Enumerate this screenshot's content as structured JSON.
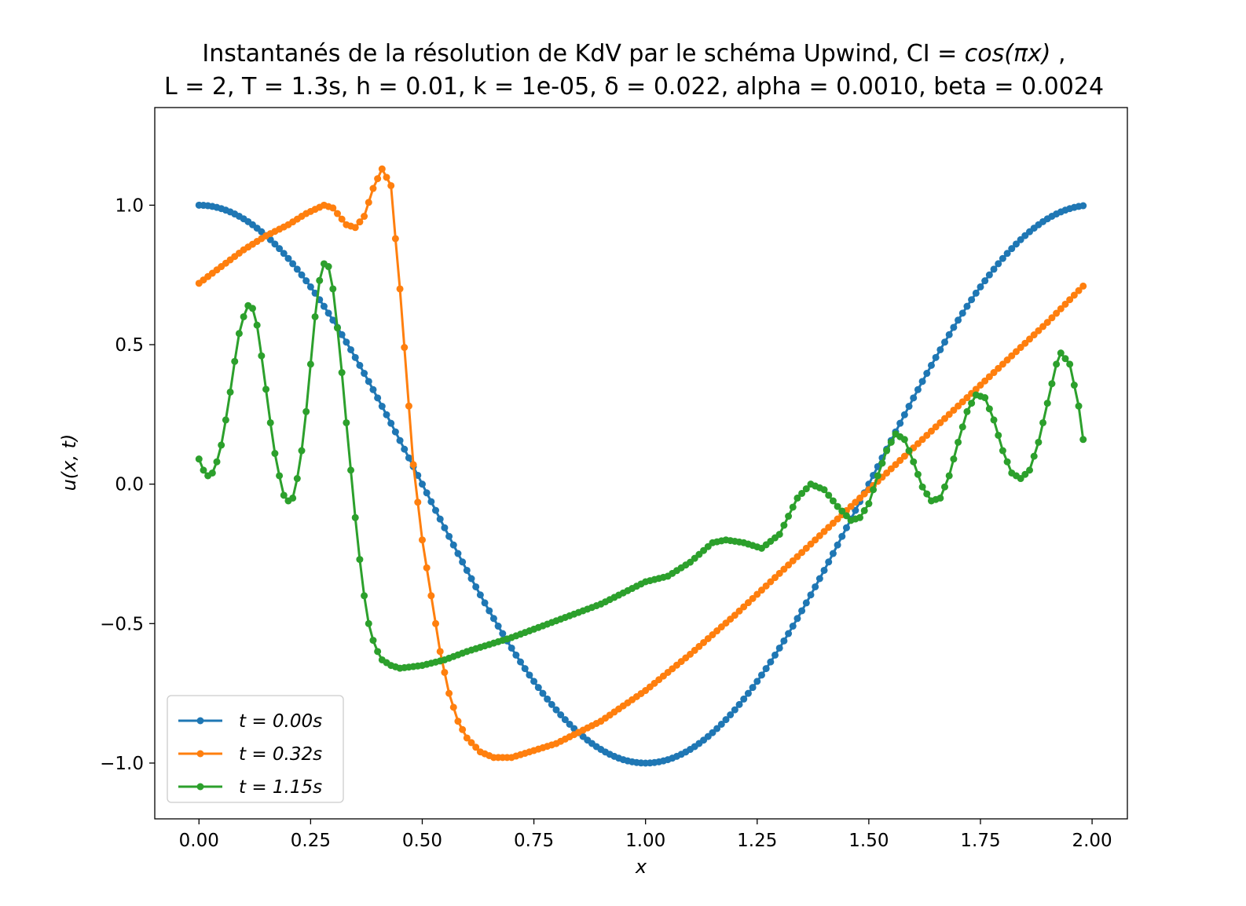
{
  "title": {
    "line1_prefix": "Instantanés de la résolution de KdV par le schéma Upwind, CI = ",
    "line1_math": "cos(πx)",
    "line1_suffix": " ,",
    "line2": "L = 2, T = 1.3s, h = 0.01, k = 1e-05, δ = 0.022,  alpha = 0.0010, beta = 0.0024"
  },
  "chart_data": {
    "type": "line",
    "xlabel": "x",
    "ylabel": "u(x, t)",
    "xlim": [
      -0.099,
      2.079
    ],
    "ylim": [
      -1.2,
      1.35
    ],
    "xticks": [
      0.0,
      0.25,
      0.5,
      0.75,
      1.0,
      1.25,
      1.5,
      1.75,
      2.0
    ],
    "xtick_labels": [
      "0.00",
      "0.25",
      "0.50",
      "0.75",
      "1.00",
      "1.25",
      "1.50",
      "1.75",
      "2.00"
    ],
    "yticks": [
      -1.0,
      -0.5,
      0.0,
      0.5,
      1.0
    ],
    "ytick_labels": [
      "−1.0",
      "−0.5",
      "0.0",
      "0.5",
      "1.0"
    ],
    "grid": false,
    "legend_position": "lower-left",
    "x_range": {
      "start": 0.0,
      "stop": 1.98,
      "step": 0.01
    },
    "series": [
      {
        "name": "t = 0.00s",
        "color": "#1f77b4",
        "marker": "circle",
        "kind": "formula",
        "formula": "cos(pi*x)"
      },
      {
        "name": "t = 0.32s",
        "color": "#ff7f0e",
        "marker": "circle",
        "kind": "points",
        "points": [
          [
            0.0,
            0.72
          ],
          [
            0.05,
            0.78
          ],
          [
            0.1,
            0.84
          ],
          [
            0.15,
            0.89
          ],
          [
            0.2,
            0.93
          ],
          [
            0.24,
            0.97
          ],
          [
            0.28,
            1.0
          ],
          [
            0.3,
            0.99
          ],
          [
            0.33,
            0.93
          ],
          [
            0.35,
            0.92
          ],
          [
            0.37,
            0.96
          ],
          [
            0.39,
            1.06
          ],
          [
            0.41,
            1.13
          ],
          [
            0.43,
            1.07
          ],
          [
            0.44,
            0.88
          ],
          [
            0.45,
            0.7
          ],
          [
            0.46,
            0.49
          ],
          [
            0.47,
            0.28
          ],
          [
            0.48,
            0.07
          ],
          [
            0.5,
            -0.2
          ],
          [
            0.52,
            -0.4
          ],
          [
            0.54,
            -0.6
          ],
          [
            0.56,
            -0.75
          ],
          [
            0.58,
            -0.85
          ],
          [
            0.6,
            -0.91
          ],
          [
            0.63,
            -0.96
          ],
          [
            0.66,
            -0.98
          ],
          [
            0.7,
            -0.98
          ],
          [
            0.8,
            -0.93
          ],
          [
            0.9,
            -0.85
          ],
          [
            1.0,
            -0.74
          ],
          [
            1.1,
            -0.61
          ],
          [
            1.2,
            -0.47
          ],
          [
            1.3,
            -0.32
          ],
          [
            1.4,
            -0.17
          ],
          [
            1.5,
            -0.02
          ],
          [
            1.6,
            0.13
          ],
          [
            1.7,
            0.28
          ],
          [
            1.8,
            0.43
          ],
          [
            1.9,
            0.58
          ],
          [
            1.98,
            0.71
          ]
        ]
      },
      {
        "name": "t = 1.15s",
        "color": "#2ca02c",
        "marker": "circle",
        "kind": "points",
        "points": [
          [
            0.0,
            0.09
          ],
          [
            0.01,
            0.05
          ],
          [
            0.02,
            0.03
          ],
          [
            0.03,
            0.04
          ],
          [
            0.04,
            0.08
          ],
          [
            0.05,
            0.14
          ],
          [
            0.06,
            0.23
          ],
          [
            0.07,
            0.33
          ],
          [
            0.08,
            0.44
          ],
          [
            0.09,
            0.54
          ],
          [
            0.1,
            0.6
          ],
          [
            0.11,
            0.64
          ],
          [
            0.12,
            0.63
          ],
          [
            0.13,
            0.57
          ],
          [
            0.14,
            0.46
          ],
          [
            0.15,
            0.34
          ],
          [
            0.16,
            0.22
          ],
          [
            0.17,
            0.11
          ],
          [
            0.18,
            0.03
          ],
          [
            0.19,
            -0.04
          ],
          [
            0.2,
            -0.06
          ],
          [
            0.21,
            -0.05
          ],
          [
            0.22,
            0.02
          ],
          [
            0.23,
            0.12
          ],
          [
            0.24,
            0.26
          ],
          [
            0.25,
            0.43
          ],
          [
            0.26,
            0.6
          ],
          [
            0.27,
            0.73
          ],
          [
            0.28,
            0.79
          ],
          [
            0.29,
            0.78
          ],
          [
            0.3,
            0.7
          ],
          [
            0.31,
            0.56
          ],
          [
            0.32,
            0.4
          ],
          [
            0.33,
            0.22
          ],
          [
            0.34,
            0.05
          ],
          [
            0.35,
            -0.12
          ],
          [
            0.36,
            -0.27
          ],
          [
            0.37,
            -0.4
          ],
          [
            0.38,
            -0.5
          ],
          [
            0.39,
            -0.56
          ],
          [
            0.4,
            -0.6
          ],
          [
            0.41,
            -0.63
          ],
          [
            0.42,
            -0.64
          ],
          [
            0.43,
            -0.65
          ],
          [
            0.45,
            -0.66
          ],
          [
            0.5,
            -0.65
          ],
          [
            0.55,
            -0.63
          ],
          [
            0.6,
            -0.6
          ],
          [
            0.7,
            -0.55
          ],
          [
            0.8,
            -0.49
          ],
          [
            0.9,
            -0.43
          ],
          [
            0.95,
            -0.39
          ],
          [
            1.0,
            -0.35
          ],
          [
            1.05,
            -0.33
          ],
          [
            1.1,
            -0.28
          ],
          [
            1.15,
            -0.21
          ],
          [
            1.18,
            -0.2
          ],
          [
            1.22,
            -0.21
          ],
          [
            1.26,
            -0.23
          ],
          [
            1.3,
            -0.18
          ],
          [
            1.34,
            -0.05
          ],
          [
            1.37,
            0.0
          ],
          [
            1.4,
            -0.02
          ],
          [
            1.43,
            -0.08
          ],
          [
            1.46,
            -0.13
          ],
          [
            1.48,
            -0.12
          ],
          [
            1.5,
            -0.07
          ],
          [
            1.52,
            0.03
          ],
          [
            1.54,
            0.12
          ],
          [
            1.56,
            0.18
          ],
          [
            1.58,
            0.16
          ],
          [
            1.6,
            0.08
          ],
          [
            1.62,
            -0.01
          ],
          [
            1.64,
            -0.06
          ],
          [
            1.66,
            -0.05
          ],
          [
            1.68,
            0.03
          ],
          [
            1.7,
            0.15
          ],
          [
            1.72,
            0.26
          ],
          [
            1.74,
            0.32
          ],
          [
            1.76,
            0.31
          ],
          [
            1.78,
            0.23
          ],
          [
            1.8,
            0.12
          ],
          [
            1.82,
            0.04
          ],
          [
            1.84,
            0.02
          ],
          [
            1.86,
            0.05
          ],
          [
            1.88,
            0.15
          ],
          [
            1.9,
            0.29
          ],
          [
            1.92,
            0.43
          ],
          [
            1.93,
            0.47
          ],
          [
            1.95,
            0.43
          ],
          [
            1.97,
            0.28
          ],
          [
            1.98,
            0.16
          ]
        ]
      }
    ]
  }
}
